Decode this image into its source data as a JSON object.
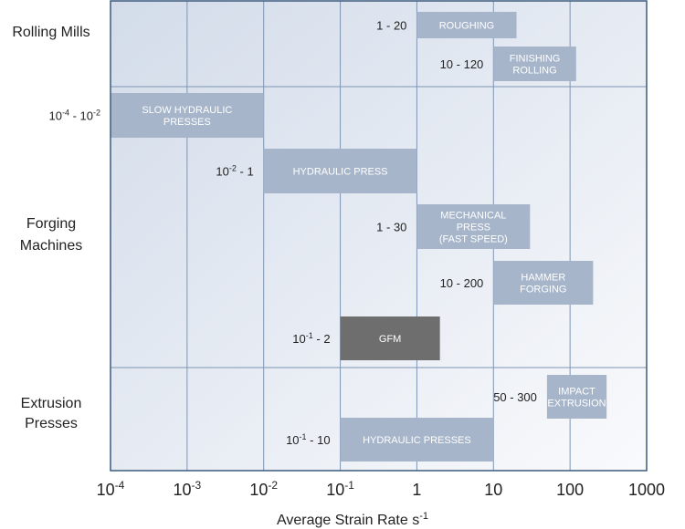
{
  "chart_data": {
    "type": "bar",
    "orientation": "horizontal-range",
    "x_scale": "log",
    "xlim": [
      0.0001,
      1000
    ],
    "xlabel": "Average Strain Rate s",
    "xlabel_sup": "-1",
    "x_ticks": [
      {
        "base": "10",
        "exp": "-4"
      },
      {
        "base": "10",
        "exp": "-3"
      },
      {
        "base": "10",
        "exp": "-2"
      },
      {
        "base": "10",
        "exp": "-1"
      },
      {
        "base": "1",
        "exp": ""
      },
      {
        "base": "10",
        "exp": ""
      },
      {
        "base": "100",
        "exp": ""
      },
      {
        "base": "1000",
        "exp": ""
      }
    ],
    "grid": true,
    "groups": [
      {
        "label": "Rolling Mills",
        "lines": [
          "Rolling Mills"
        ]
      },
      {
        "label": "Forging Machines",
        "lines": [
          "Forging",
          "Machines"
        ]
      },
      {
        "label": "Extrusion Presses",
        "lines": [
          "Extrusion",
          "Presses"
        ]
      }
    ],
    "bars": [
      {
        "group": "Rolling Mills",
        "name": "ROUGHING",
        "lines": [
          "ROUGHING"
        ],
        "x_start": 1,
        "x_end": 20,
        "range_label": [
          {
            "t": "1  -  20"
          }
        ],
        "color": "#a6b5ca"
      },
      {
        "group": "Rolling Mills",
        "name": "FINISHING ROLLING",
        "lines": [
          "FINISHING",
          "ROLLING"
        ],
        "x_start": 10,
        "x_end": 120,
        "range_label": [
          {
            "t": "10  -  120"
          }
        ],
        "color": "#a6b5ca"
      },
      {
        "group": "Forging Machines",
        "name": "SLOW HYDRAULIC PRESSES",
        "lines": [
          "SLOW HYDRAULIC",
          "PRESSES"
        ],
        "x_start": 0.0001,
        "x_end": 0.01,
        "range_label": [
          {
            "t": "10"
          },
          {
            "t": "-4",
            "sup": true
          },
          {
            "t": " - 10"
          },
          {
            "t": "-2",
            "sup": true
          }
        ],
        "color": "#a6b5ca"
      },
      {
        "group": "Forging Machines",
        "name": "HYDRAULIC PRESS",
        "lines": [
          "HYDRAULIC PRESS"
        ],
        "x_start": 0.01,
        "x_end": 1,
        "range_label": [
          {
            "t": "10"
          },
          {
            "t": "-2",
            "sup": true
          },
          {
            "t": "  -  1"
          }
        ],
        "color": "#a6b5ca"
      },
      {
        "group": "Forging Machines",
        "name": "MECHANICAL PRESS (FAST SPEED)",
        "lines": [
          "MECHANICAL",
          "PRESS",
          "(FAST SPEED)"
        ],
        "x_start": 1,
        "x_end": 30,
        "range_label": [
          {
            "t": "1  -  30"
          }
        ],
        "color": "#a6b5ca"
      },
      {
        "group": "Forging Machines",
        "name": "HAMMER FORGING",
        "lines": [
          "HAMMER",
          "FORGING"
        ],
        "x_start": 10,
        "x_end": 200,
        "range_label": [
          {
            "t": "10  -  200"
          }
        ],
        "color": "#a6b5ca"
      },
      {
        "group": "Forging Machines",
        "name": "GFM",
        "lines": [
          "GFM"
        ],
        "x_start": 0.1,
        "x_end": 2,
        "range_label": [
          {
            "t": "10"
          },
          {
            "t": "-1",
            "sup": true
          },
          {
            "t": "  -  2"
          }
        ],
        "color": "#6e6e6e"
      },
      {
        "group": "Extrusion Presses",
        "name": "IMPACT EXTRUSION",
        "lines": [
          "IMPACT",
          "EXTRUSION"
        ],
        "x_start": 50,
        "x_end": 300,
        "range_label": [
          {
            "t": "50  -  300"
          }
        ],
        "color": "#a6b5ca"
      },
      {
        "group": "Extrusion Presses",
        "name": "HYDRAULIC PRESSES",
        "lines": [
          "HYDRAULIC PRESSES"
        ],
        "x_start": 0.1,
        "x_end": 10,
        "range_label": [
          {
            "t": "10"
          },
          {
            "t": "-1",
            "sup": true
          },
          {
            "t": "  -  10"
          }
        ],
        "color": "#a6b5ca"
      }
    ],
    "colors": {
      "frame": "#3c5a7e",
      "grid": "#7f95b3",
      "bg_start": "#d3dcea",
      "bg_end": "#f9fafc",
      "bar_text": "#ffffff",
      "text": "#222222"
    }
  }
}
